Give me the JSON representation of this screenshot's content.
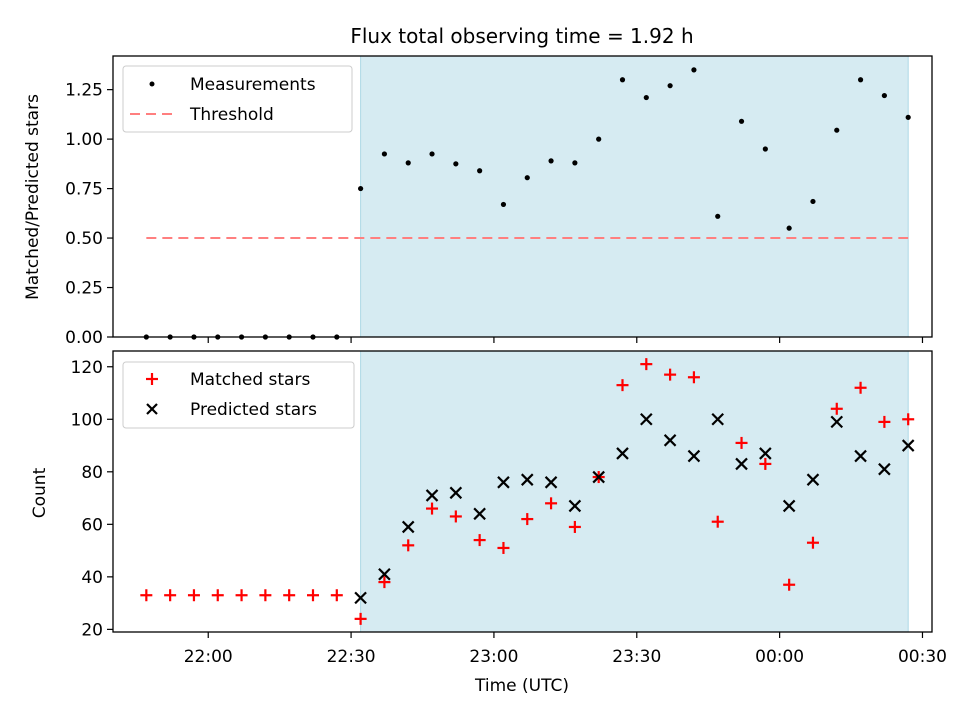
{
  "chart_data": [
    {
      "type": "scatter",
      "title": "Flux total observing time = 1.92 h",
      "ylabel": "Matched/Predicted stars",
      "xlim": [
        "21:40",
        "00:32"
      ],
      "ylim": [
        0,
        1.42
      ],
      "yticks": [
        0.0,
        0.25,
        0.5,
        0.75,
        1.0,
        1.25
      ],
      "ytick_labels": [
        "0.00",
        "0.25",
        "0.50",
        "0.75",
        "1.00",
        "1.25"
      ],
      "shaded_interval": [
        "22:32",
        "00:27"
      ],
      "shade_color": "#add8e6",
      "legend_position": "upper-left",
      "series": [
        {
          "name": "Measurements",
          "marker": "dot",
          "color": "#000000",
          "x": [
            "21:47",
            "21:52",
            "21:57",
            "22:02",
            "22:07",
            "22:12",
            "22:17",
            "22:22",
            "22:27",
            "22:32",
            "22:37",
            "22:42",
            "22:47",
            "22:52",
            "22:57",
            "23:02",
            "23:07",
            "23:12",
            "23:17",
            "23:22",
            "23:27",
            "23:32",
            "23:37",
            "23:42",
            "23:47",
            "23:52",
            "23:57",
            "00:02",
            "00:07",
            "00:12",
            "00:17",
            "00:22",
            "00:27"
          ],
          "y": [
            0,
            0,
            0,
            0,
            0,
            0,
            0,
            0,
            0,
            0.75,
            0.925,
            0.88,
            0.925,
            0.875,
            0.84,
            0.67,
            0.805,
            0.89,
            0.88,
            1.0,
            1.3,
            1.21,
            1.27,
            1.35,
            0.61,
            1.09,
            0.95,
            0.55,
            0.685,
            1.045,
            1.3,
            1.22,
            1.11
          ]
        },
        {
          "name": "Threshold",
          "style": "dashed",
          "color": "#ff7f7f",
          "x": [
            "21:47",
            "00:27"
          ],
          "y": [
            0.5,
            0.5
          ]
        }
      ]
    },
    {
      "type": "scatter",
      "xlabel": "Time (UTC)",
      "ylabel": "Count",
      "xlim": [
        "21:40",
        "00:32"
      ],
      "ylim": [
        19,
        126
      ],
      "yticks": [
        20,
        40,
        60,
        80,
        100,
        120
      ],
      "ytick_labels": [
        "20",
        "40",
        "60",
        "80",
        "100",
        "120"
      ],
      "xticks": [
        "22:00",
        "22:30",
        "23:00",
        "23:30",
        "00:00",
        "00:30"
      ],
      "xtick_labels": [
        "22:00",
        "22:30",
        "23:00",
        "23:30",
        "00:00",
        "00:30"
      ],
      "shaded_interval": [
        "22:32",
        "00:27"
      ],
      "shade_color": "#add8e6",
      "legend_position": "upper-left",
      "series": [
        {
          "name": "Matched stars",
          "marker": "plus",
          "color": "#ff0000",
          "x": [
            "21:47",
            "21:52",
            "21:57",
            "22:02",
            "22:07",
            "22:12",
            "22:17",
            "22:22",
            "22:27",
            "22:32",
            "22:37",
            "22:42",
            "22:47",
            "22:52",
            "22:57",
            "23:02",
            "23:07",
            "23:12",
            "23:17",
            "23:22",
            "23:27",
            "23:32",
            "23:37",
            "23:42",
            "23:47",
            "23:52",
            "23:57",
            "00:02",
            "00:07",
            "00:12",
            "00:17",
            "00:22",
            "00:27"
          ],
          "y": [
            33,
            33,
            33,
            33,
            33,
            33,
            33,
            33,
            33,
            24,
            38,
            52,
            66,
            63,
            54,
            51,
            62,
            68,
            59,
            78,
            113,
            121,
            117,
            116,
            61,
            91,
            83,
            37,
            53,
            104,
            112,
            99,
            100
          ]
        },
        {
          "name": "Predicted stars",
          "marker": "x",
          "color": "#000000",
          "x": [
            "22:32",
            "22:37",
            "22:42",
            "22:47",
            "22:52",
            "22:57",
            "23:02",
            "23:07",
            "23:12",
            "23:17",
            "23:22",
            "23:27",
            "23:32",
            "23:37",
            "23:42",
            "23:47",
            "23:52",
            "23:57",
            "00:02",
            "00:07",
            "00:12",
            "00:17",
            "00:22",
            "00:27"
          ],
          "y": [
            32,
            41,
            59,
            71,
            72,
            64,
            76,
            77,
            76,
            67,
            78,
            87,
            100,
            92,
            86,
            100,
            83,
            87,
            67,
            77,
            99,
            86,
            81,
            90
          ]
        }
      ]
    }
  ]
}
